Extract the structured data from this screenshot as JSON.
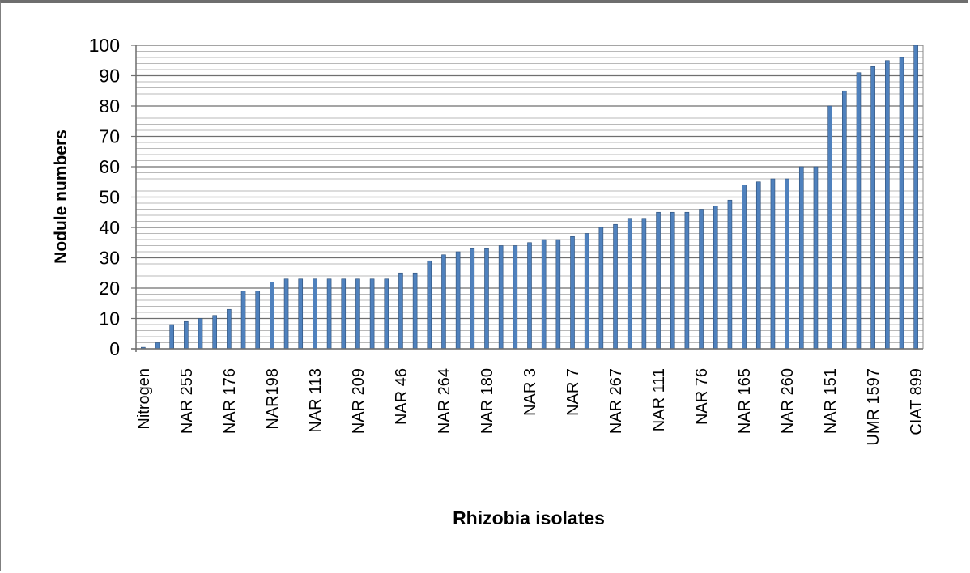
{
  "chart_data": {
    "type": "bar",
    "title": "",
    "xlabel": "Rhizobia isolates",
    "ylabel": "Nodule numbers",
    "ylim": [
      0,
      100
    ],
    "y_major_ticks": [
      0,
      10,
      20,
      30,
      40,
      50,
      60,
      70,
      80,
      90,
      100
    ],
    "grid": true,
    "legend": "none",
    "bar_color": "#4f81bd",
    "bar_edge_color": "#2c4d75",
    "categories": [
      "Nitrogen",
      "",
      "",
      "NAR 255",
      "",
      "",
      "NAR 176",
      "",
      "",
      "NAR198",
      "",
      "",
      "NAR 113",
      "",
      "",
      "NAR 209",
      "",
      "",
      "NAR 46",
      "",
      "",
      "NAR 264",
      "",
      "",
      "NAR 180",
      "",
      "",
      "NAR 3",
      "",
      "",
      "NAR 7",
      "",
      "",
      "NAR 267",
      "",
      "",
      "NAR 111",
      "",
      "",
      "NAR 76",
      "",
      "",
      "NAR 165",
      "",
      "",
      "NAR 260",
      "",
      "",
      "NAR 151",
      "",
      "",
      "UMR 1597",
      "",
      "",
      "CIAT 899"
    ],
    "values": [
      0.5,
      2,
      8,
      9,
      10,
      11,
      13,
      19,
      19,
      22,
      23,
      23,
      23,
      23,
      23,
      23,
      23,
      23,
      25,
      25,
      29,
      31,
      32,
      33,
      33,
      34,
      34,
      35,
      36,
      36,
      37,
      38,
      40,
      41,
      43,
      43,
      45,
      45,
      45,
      46,
      47,
      49,
      54,
      55,
      56,
      56,
      60,
      60,
      80,
      85,
      91,
      93,
      95,
      96,
      100
    ]
  }
}
